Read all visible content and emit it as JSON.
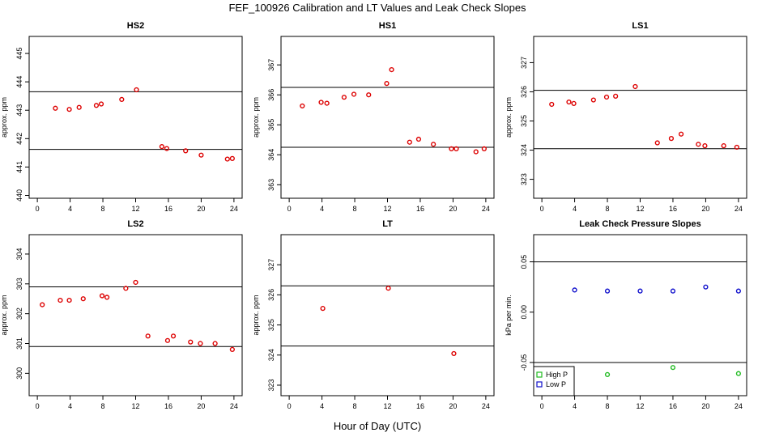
{
  "figure": {
    "title": "FEF_100926  Calibration and LT Values and Leak Check Slopes",
    "xlabel": "Hour of Day (UTC)"
  },
  "chart_data": [
    {
      "id": "hs2",
      "type": "scatter",
      "title": "HS2",
      "ylabel": "approx. ppm",
      "xlim": [
        -1,
        25
      ],
      "ylim": [
        439.9,
        445.6
      ],
      "xticks": [
        "0",
        "4",
        "8",
        "12",
        "16",
        "20",
        "24"
      ],
      "yticks": [
        "440",
        "441",
        "442",
        "443",
        "444",
        "445"
      ],
      "hlines": [
        443.65,
        441.62
      ],
      "series": [
        {
          "color": "#dd0000",
          "points": [
            [
              2.2,
              443.07
            ],
            [
              3.9,
              443.03
            ],
            [
              5.1,
              443.1
            ],
            [
              7.2,
              443.17
            ],
            [
              7.8,
              443.22
            ],
            [
              10.3,
              443.38
            ],
            [
              12.1,
              443.72
            ],
            [
              15.2,
              441.72
            ],
            [
              15.8,
              441.65
            ],
            [
              18.1,
              441.57
            ],
            [
              20.0,
              441.42
            ],
            [
              23.2,
              441.28
            ],
            [
              23.8,
              441.3
            ]
          ]
        }
      ]
    },
    {
      "id": "hs1",
      "type": "scatter",
      "title": "HS1",
      "ylabel": "approx. ppm",
      "xlim": [
        -1,
        25
      ],
      "ylim": [
        362.55,
        367.95
      ],
      "xticks": [
        "0",
        "4",
        "8",
        "12",
        "16",
        "20",
        "24"
      ],
      "yticks": [
        "363",
        "364",
        "365",
        "366",
        "367"
      ],
      "hlines": [
        366.25,
        364.25
      ],
      "series": [
        {
          "color": "#dd0000",
          "points": [
            [
              1.6,
              365.63
            ],
            [
              3.9,
              365.75
            ],
            [
              4.6,
              365.72
            ],
            [
              6.7,
              365.92
            ],
            [
              7.9,
              366.02
            ],
            [
              9.7,
              366.0
            ],
            [
              11.9,
              366.38
            ],
            [
              12.5,
              366.84
            ],
            [
              14.7,
              364.42
            ],
            [
              15.8,
              364.52
            ],
            [
              17.6,
              364.35
            ],
            [
              19.8,
              364.2
            ],
            [
              20.4,
              364.2
            ],
            [
              22.8,
              364.1
            ],
            [
              23.8,
              364.2
            ]
          ]
        }
      ]
    },
    {
      "id": "ls1",
      "type": "scatter",
      "title": "LS1",
      "ylabel": "approx. ppm",
      "xlim": [
        -1,
        25
      ],
      "ylim": [
        322.35,
        327.9
      ],
      "xticks": [
        "0",
        "4",
        "8",
        "12",
        "16",
        "20",
        "24"
      ],
      "yticks": [
        "323",
        "324",
        "325",
        "326",
        "327"
      ],
      "hlines": [
        326.05,
        324.05
      ],
      "series": [
        {
          "color": "#dd0000",
          "points": [
            [
              1.2,
              325.57
            ],
            [
              3.3,
              325.65
            ],
            [
              3.9,
              325.6
            ],
            [
              6.3,
              325.72
            ],
            [
              7.9,
              325.82
            ],
            [
              9.0,
              325.85
            ],
            [
              11.4,
              326.18
            ],
            [
              14.1,
              324.25
            ],
            [
              15.8,
              324.4
            ],
            [
              17.0,
              324.55
            ],
            [
              19.1,
              324.2
            ],
            [
              19.9,
              324.15
            ],
            [
              22.2,
              324.15
            ],
            [
              23.8,
              324.1
            ]
          ]
        }
      ]
    },
    {
      "id": "ls2",
      "type": "scatter",
      "title": "LS2",
      "ylabel": "approx. ppm",
      "xlim": [
        -1,
        25
      ],
      "ylim": [
        299.25,
        304.65
      ],
      "xticks": [
        "0",
        "4",
        "8",
        "12",
        "16",
        "20",
        "24"
      ],
      "yticks": [
        "300",
        "301",
        "302",
        "303",
        "304"
      ],
      "hlines": [
        302.9,
        300.9
      ],
      "series": [
        {
          "color": "#dd0000",
          "points": [
            [
              0.6,
              302.3
            ],
            [
              2.8,
              302.45
            ],
            [
              3.9,
              302.45
            ],
            [
              5.6,
              302.5
            ],
            [
              7.9,
              302.6
            ],
            [
              8.5,
              302.55
            ],
            [
              10.8,
              302.85
            ],
            [
              12.0,
              303.05
            ],
            [
              13.5,
              301.25
            ],
            [
              15.9,
              301.1
            ],
            [
              16.6,
              301.25
            ],
            [
              18.7,
              301.05
            ],
            [
              19.9,
              301.0
            ],
            [
              21.7,
              301.0
            ],
            [
              23.8,
              300.8
            ]
          ]
        }
      ]
    },
    {
      "id": "lt",
      "type": "scatter",
      "title": "LT",
      "ylabel": "approx. ppm",
      "xlim": [
        -1,
        25
      ],
      "ylim": [
        322.65,
        328.0
      ],
      "xticks": [
        "0",
        "4",
        "8",
        "12",
        "16",
        "20",
        "24"
      ],
      "yticks": [
        "323",
        "324",
        "325",
        "326",
        "327"
      ],
      "hlines": [
        326.3,
        324.3
      ],
      "series": [
        {
          "color": "#dd0000",
          "points": [
            [
              4.1,
              325.55
            ],
            [
              12.1,
              326.22
            ],
            [
              20.1,
              324.05
            ]
          ]
        }
      ]
    },
    {
      "id": "leak",
      "type": "scatter",
      "title": "Leak Check Pressure Slopes",
      "ylabel": "kPa per min.",
      "xlim": [
        -1,
        25
      ],
      "ylim": [
        -0.083,
        0.077
      ],
      "xticks": [
        "0",
        "4",
        "8",
        "12",
        "16",
        "20",
        "24"
      ],
      "yticks": [
        "-0.05",
        "0.00",
        "0.05"
      ],
      "hlines": [
        0.05,
        -0.05
      ],
      "legend": {
        "position": "bottom-left",
        "entries": [
          {
            "label": "High P",
            "color": "#22bb22"
          },
          {
            "label": "Low P",
            "color": "#1111cc"
          }
        ]
      },
      "series": [
        {
          "name": "High P",
          "color": "#22bb22",
          "points": [
            [
              8,
              -0.062
            ],
            [
              16,
              -0.055
            ],
            [
              24,
              -0.061
            ]
          ]
        },
        {
          "name": "Low P",
          "color": "#1111cc",
          "points": [
            [
              4,
              0.022
            ],
            [
              8,
              0.021
            ],
            [
              12,
              0.021
            ],
            [
              16,
              0.021
            ],
            [
              20,
              0.025
            ],
            [
              24,
              0.021
            ]
          ]
        }
      ]
    }
  ]
}
